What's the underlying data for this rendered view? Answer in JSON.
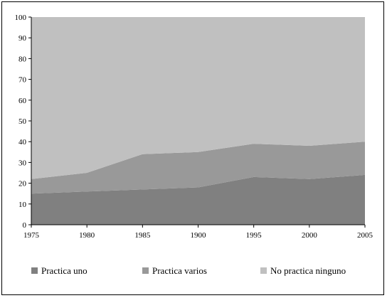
{
  "chart_data": {
    "type": "area",
    "stacked": true,
    "x": [
      "1975",
      "1980",
      "1985",
      "1900",
      "1995",
      "2000",
      "2005"
    ],
    "ylim": [
      0,
      100
    ],
    "y_ticks": [
      "0",
      "10",
      "20",
      "30",
      "40",
      "50",
      "60",
      "70",
      "80",
      "90",
      "100"
    ],
    "grid": false,
    "legend_position": "bottom",
    "series": [
      {
        "name": "Practica uno",
        "color": "#808080",
        "values": [
          15,
          16,
          17,
          18,
          23,
          22,
          24
        ]
      },
      {
        "name": "Practica varios",
        "color": "#999999",
        "values": [
          7,
          9,
          17,
          17,
          16,
          16,
          16
        ]
      },
      {
        "name": "No practica ninguno",
        "color": "#c0c0c0",
        "values": [
          78,
          75,
          66,
          65,
          61,
          62,
          60
        ]
      }
    ]
  }
}
